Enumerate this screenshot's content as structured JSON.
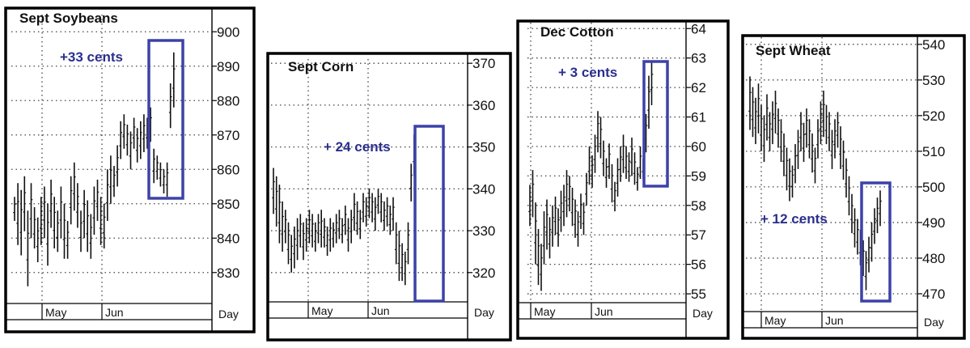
{
  "colors": {
    "frame": "#000000",
    "grid": "#444444",
    "bar": "#111111",
    "highlight": "#3d42a8",
    "annotation": "#2b2f8e"
  },
  "chart_data": [
    {
      "type": "bar",
      "style": "ohlc",
      "title": "Sept Soybeans",
      "annotation": "+33 cents",
      "axis_label": "Day",
      "months": [
        "May",
        "Jun"
      ],
      "yticks": [
        830,
        840,
        850,
        860,
        870,
        880,
        890,
        900
      ],
      "ylim": [
        821,
        905
      ],
      "grid": true,
      "highlight_range": [
        853,
        897
      ],
      "bars": [
        [
          852,
          845
        ],
        [
          856,
          838
        ],
        [
          854,
          835
        ],
        [
          858,
          842
        ],
        [
          848,
          826
        ],
        [
          856,
          840
        ],
        [
          849,
          837
        ],
        [
          846,
          833
        ],
        [
          852,
          838
        ],
        [
          855,
          840
        ],
        [
          850,
          832
        ],
        [
          857,
          843
        ],
        [
          852,
          837
        ],
        [
          848,
          836
        ],
        [
          855,
          840
        ],
        [
          850,
          834
        ],
        [
          845,
          834
        ],
        [
          858,
          844
        ],
        [
          862,
          848
        ],
        [
          856,
          843
        ],
        [
          848,
          836
        ],
        [
          854,
          840
        ],
        [
          851,
          836
        ],
        [
          847,
          834
        ],
        [
          855,
          841
        ],
        [
          857,
          845
        ],
        [
          852,
          838
        ],
        [
          850,
          837
        ],
        [
          860,
          845
        ],
        [
          864,
          850
        ],
        [
          861,
          852
        ],
        [
          867,
          855
        ],
        [
          874,
          863
        ],
        [
          876,
          866
        ],
        [
          873,
          864
        ],
        [
          871,
          860
        ],
        [
          875,
          866
        ],
        [
          872,
          862
        ],
        [
          874,
          863
        ],
        [
          876,
          865
        ],
        [
          875,
          866
        ],
        [
          878,
          868
        ],
        [
          866,
          856
        ],
        [
          864,
          857
        ],
        [
          862,
          855
        ],
        [
          860,
          853
        ],
        [
          862,
          852
        ],
        [
          885,
          872
        ],
        [
          894,
          878
        ]
      ]
    },
    {
      "type": "bar",
      "style": "ohlc",
      "title": "Sept Corn",
      "annotation": "+ 24 cents",
      "axis_label": "Day",
      "months": [
        "May",
        "Jun"
      ],
      "yticks": [
        320,
        330,
        340,
        350,
        360,
        370
      ],
      "ylim": [
        313,
        371
      ],
      "grid": true,
      "highlight_range": [
        318,
        355
      ],
      "bars": [
        [
          345,
          334
        ],
        [
          343,
          331
        ],
        [
          341,
          327
        ],
        [
          337,
          325
        ],
        [
          335,
          327
        ],
        [
          332,
          322
        ],
        [
          329,
          320
        ],
        [
          331,
          321
        ],
        [
          333,
          323
        ],
        [
          334,
          326
        ],
        [
          332,
          323
        ],
        [
          333,
          325
        ],
        [
          335,
          327
        ],
        [
          334,
          326
        ],
        [
          332,
          325
        ],
        [
          334,
          327
        ],
        [
          335,
          326
        ],
        [
          333,
          326
        ],
        [
          331,
          324
        ],
        [
          333,
          325
        ],
        [
          332,
          326
        ],
        [
          334,
          327
        ],
        [
          335,
          328
        ],
        [
          333,
          327
        ],
        [
          336,
          329
        ],
        [
          333,
          325
        ],
        [
          335,
          327
        ],
        [
          339,
          330
        ],
        [
          337,
          329
        ],
        [
          335,
          328
        ],
        [
          339,
          332
        ],
        [
          338,
          331
        ],
        [
          340,
          333
        ],
        [
          339,
          332
        ],
        [
          338,
          330
        ],
        [
          340,
          334
        ],
        [
          339,
          332
        ],
        [
          337,
          330
        ],
        [
          338,
          331
        ],
        [
          336,
          329
        ],
        [
          338,
          330
        ],
        [
          332,
          322
        ],
        [
          330,
          318
        ],
        [
          327,
          318
        ],
        [
          325,
          317
        ],
        [
          332,
          322
        ],
        [
          346,
          337
        ],
        [
          353,
          343
        ]
      ]
    },
    {
      "type": "bar",
      "style": "ohlc",
      "title": "Dec Cotton",
      "annotation": "+ 3 cents",
      "axis_label": "Day",
      "months": [
        "May",
        "Jun"
      ],
      "yticks": [
        55,
        56,
        57,
        58,
        59,
        60,
        61,
        62,
        63,
        64
      ],
      "ylim": [
        54.7,
        64.2
      ],
      "grid": true,
      "highlight_range": [
        58.7,
        63.2
      ],
      "bars": [
        [
          58.7,
          57.3
        ],
        [
          59.2,
          57.6
        ],
        [
          58.1,
          56.0
        ],
        [
          57.2,
          55.3
        ],
        [
          56.7,
          55.1
        ],
        [
          57.8,
          56.0
        ],
        [
          58.2,
          56.5
        ],
        [
          57.6,
          56.2
        ],
        [
          58.0,
          56.6
        ],
        [
          58.3,
          57.0
        ],
        [
          57.9,
          56.6
        ],
        [
          58.5,
          57.1
        ],
        [
          58.7,
          57.3
        ],
        [
          59.2,
          57.6
        ],
        [
          59.0,
          57.8
        ],
        [
          58.6,
          57.3
        ],
        [
          58.2,
          56.9
        ],
        [
          57.8,
          56.6
        ],
        [
          58.4,
          57.2
        ],
        [
          58.1,
          57.0
        ],
        [
          59.1,
          58.0
        ],
        [
          60.0,
          58.7
        ],
        [
          59.7,
          58.6
        ],
        [
          60.4,
          59.1
        ],
        [
          61.2,
          59.8
        ],
        [
          61.0,
          59.6
        ],
        [
          60.2,
          59.0
        ],
        [
          59.6,
          58.6
        ],
        [
          60.1,
          58.9
        ],
        [
          59.4,
          58.1
        ],
        [
          58.8,
          57.8
        ],
        [
          59.6,
          58.3
        ],
        [
          60.0,
          58.8
        ],
        [
          60.4,
          59.1
        ],
        [
          60.0,
          58.9
        ],
        [
          59.8,
          58.8
        ],
        [
          60.3,
          59.0
        ],
        [
          59.8,
          58.7
        ],
        [
          59.3,
          58.5
        ],
        [
          60.0,
          58.9
        ],
        [
          59.6,
          58.9
        ],
        [
          61.1,
          59.8
        ],
        [
          62.4,
          60.6
        ],
        [
          62.9,
          61.4
        ]
      ]
    },
    {
      "type": "bar",
      "style": "ohlc",
      "title": "Sept Wheat",
      "annotation": "+ 12 cents",
      "axis_label": "Day",
      "months": [
        "May",
        "Jun"
      ],
      "yticks": [
        470,
        480,
        490,
        500,
        510,
        520,
        530,
        540
      ],
      "ylim": [
        465,
        542
      ],
      "grid": true,
      "highlight_range": [
        470,
        502
      ],
      "bars": [
        [
          531,
          516
        ],
        [
          528,
          514
        ],
        [
          525,
          512
        ],
        [
          529,
          515
        ],
        [
          523,
          510
        ],
        [
          520,
          507
        ],
        [
          526,
          513
        ],
        [
          521,
          510
        ],
        [
          524,
          512
        ],
        [
          527,
          515
        ],
        [
          522,
          511
        ],
        [
          519,
          507
        ],
        [
          515,
          503
        ],
        [
          511,
          499
        ],
        [
          508,
          496
        ],
        [
          506,
          497
        ],
        [
          512,
          501
        ],
        [
          516,
          505
        ],
        [
          521,
          510
        ],
        [
          518,
          507
        ],
        [
          522,
          511
        ],
        [
          519,
          508
        ],
        [
          515,
          504
        ],
        [
          511,
          501
        ],
        [
          519,
          508
        ],
        [
          524,
          512
        ],
        [
          527,
          514
        ],
        [
          523,
          512
        ],
        [
          521,
          510
        ],
        [
          516,
          505
        ],
        [
          519,
          508
        ],
        [
          521,
          511
        ],
        [
          517,
          505
        ],
        [
          513,
          502
        ],
        [
          508,
          497
        ],
        [
          503,
          492
        ],
        [
          498,
          487
        ],
        [
          494,
          483
        ],
        [
          491,
          481
        ],
        [
          488,
          478
        ],
        [
          485,
          475
        ],
        [
          482,
          471
        ],
        [
          486,
          476
        ],
        [
          490,
          479
        ],
        [
          494,
          484
        ],
        [
          497,
          487
        ],
        [
          499,
          489
        ]
      ]
    }
  ]
}
